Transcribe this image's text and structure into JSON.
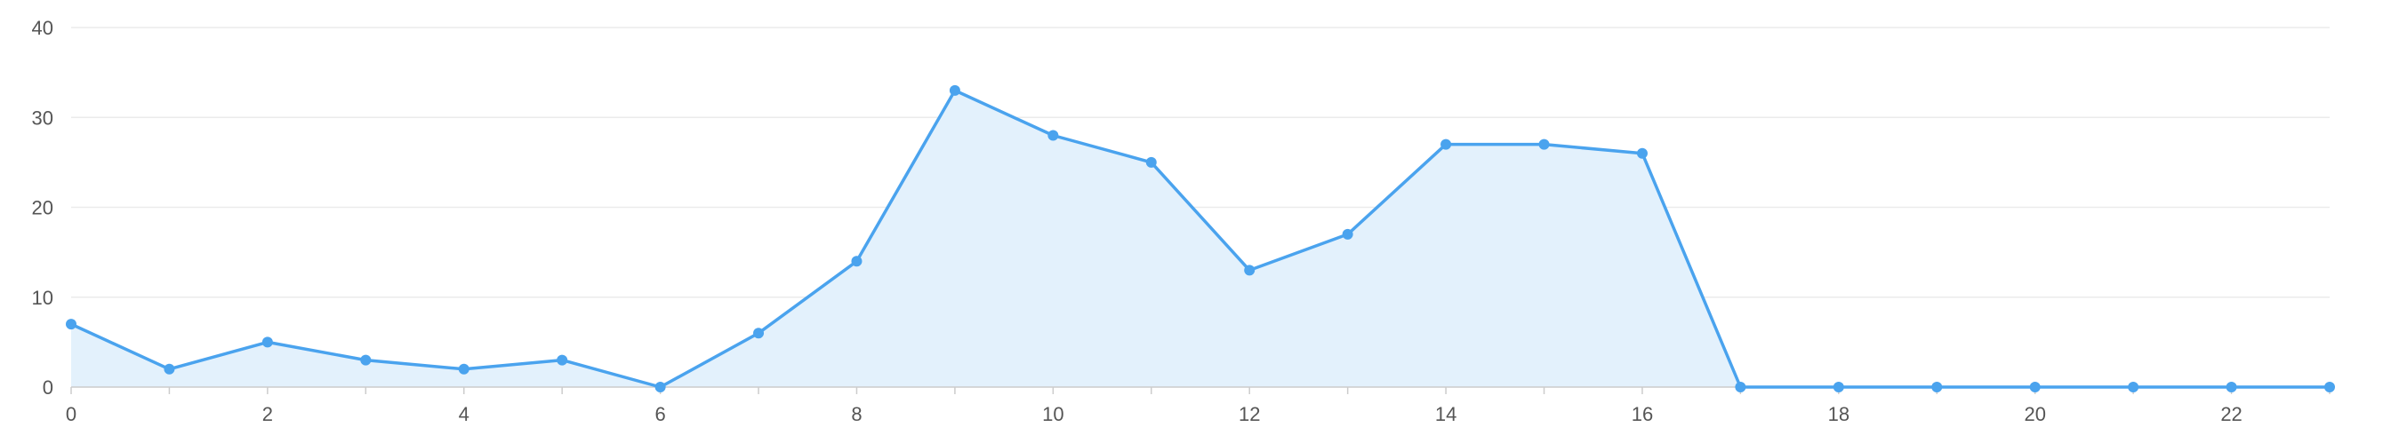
{
  "chart_data": {
    "type": "area",
    "title": "",
    "xlabel": "",
    "ylabel": "",
    "x": [
      0,
      1,
      2,
      3,
      4,
      5,
      6,
      7,
      8,
      9,
      10,
      11,
      12,
      13,
      14,
      15,
      16,
      17,
      18,
      19,
      20,
      21,
      22,
      23
    ],
    "x_tick_labels": [
      "0",
      "2",
      "4",
      "6",
      "8",
      "10",
      "12",
      "14",
      "16",
      "18",
      "20",
      "22"
    ],
    "y_tick_labels": [
      "0",
      "10",
      "20",
      "30",
      "40"
    ],
    "xlim": [
      0,
      23
    ],
    "ylim": [
      0,
      40
    ],
    "grid": "horizontal",
    "series": [
      {
        "values": [
          7,
          2,
          5,
          3,
          2,
          3,
          0,
          6,
          14,
          33,
          28,
          25,
          13,
          17,
          27,
          27,
          26,
          0,
          0,
          0,
          0,
          0,
          0,
          0
        ]
      }
    ],
    "colors": {
      "line": "#4aa3ee",
      "fill": "#e3f1fc",
      "grid": "#ebebeb",
      "axis": "#cccccc",
      "tick_text": "#555555"
    }
  }
}
